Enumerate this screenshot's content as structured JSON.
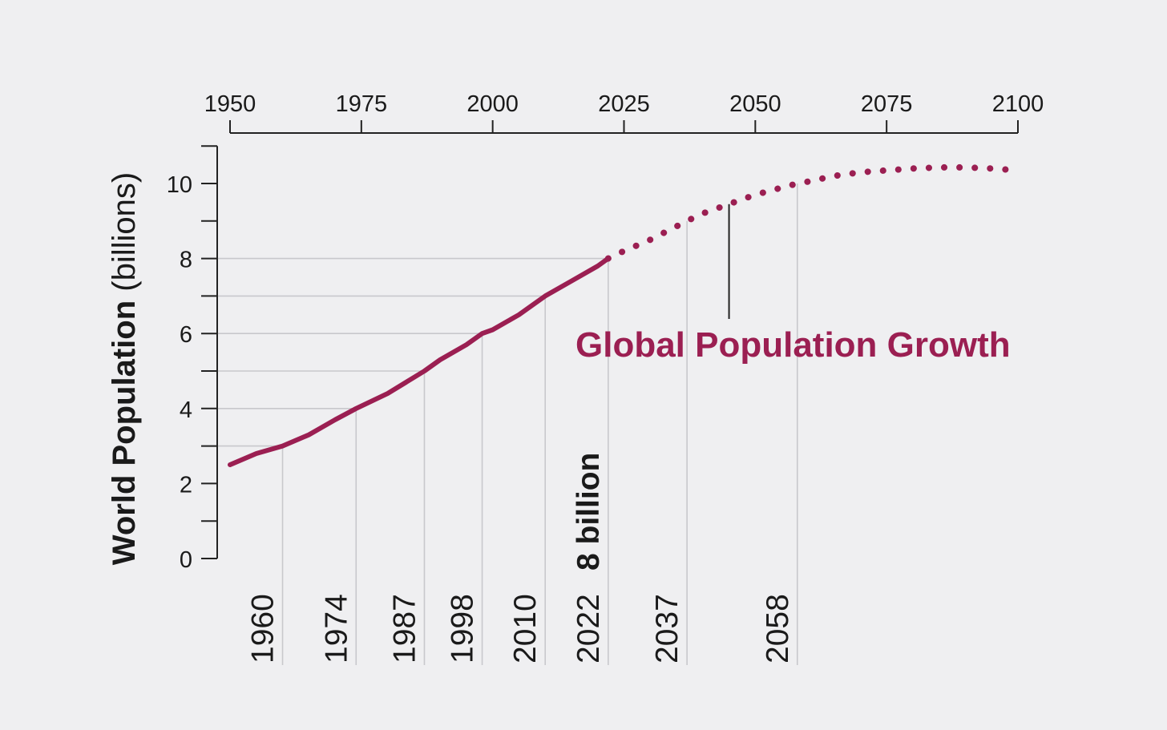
{
  "chart_data": {
    "type": "line",
    "title": "Global Population Growth",
    "ylabel_bold": "World Population",
    "ylabel_unit": "(billions)",
    "xlim": [
      1950,
      2100
    ],
    "ylim": [
      0,
      11
    ],
    "x_ticks": [
      1950,
      1975,
      2000,
      2025,
      2050,
      2075,
      2100
    ],
    "y_ticks_labeled": [
      0,
      2,
      4,
      6,
      8,
      10
    ],
    "y_ticks_minor": [
      1,
      3,
      5,
      7,
      9,
      11
    ],
    "grid_y": [
      3,
      4,
      5,
      6,
      7,
      8
    ],
    "series": [
      {
        "style": "solid",
        "x": [
          1950,
          1955,
          1960,
          1965,
          1970,
          1974,
          1980,
          1987,
          1990,
          1995,
          1998,
          2000,
          2005,
          2010,
          2015,
          2020,
          2022
        ],
        "y": [
          2.5,
          2.8,
          3.0,
          3.3,
          3.7,
          4.0,
          4.4,
          5.0,
          5.3,
          5.7,
          6.0,
          6.1,
          6.5,
          7.0,
          7.4,
          7.8,
          8.0
        ]
      },
      {
        "style": "dotted",
        "x": [
          2022,
          2025,
          2030,
          2037,
          2040,
          2045,
          2050,
          2058,
          2060,
          2065,
          2070,
          2075,
          2080,
          2085,
          2090,
          2095,
          2100
        ],
        "y": [
          8.0,
          8.2,
          8.5,
          9.0,
          9.2,
          9.45,
          9.7,
          10.0,
          10.05,
          10.2,
          10.3,
          10.35,
          10.4,
          10.43,
          10.43,
          10.4,
          10.35
        ]
      }
    ],
    "milestones": [
      {
        "year": 1960,
        "label": "1960",
        "value": 3
      },
      {
        "year": 1974,
        "label": "1974",
        "value": 4
      },
      {
        "year": 1987,
        "label": "1987",
        "value": 5
      },
      {
        "year": 1998,
        "label": "1998",
        "value": 6
      },
      {
        "year": 2010,
        "label": "2010",
        "value": 7
      },
      {
        "year": 2022,
        "label": "2022",
        "value": 8,
        "extra": "8 billion"
      },
      {
        "year": 2037,
        "label": "2037",
        "value": 9
      },
      {
        "year": 2058,
        "label": "2058",
        "value": 10
      }
    ],
    "annotation_year": 2045,
    "colors": {
      "series": "#9b1f52",
      "title": "#9b1f52",
      "axis": "#222222",
      "grid": "#c8c8cc",
      "background": "#efeff1"
    }
  }
}
